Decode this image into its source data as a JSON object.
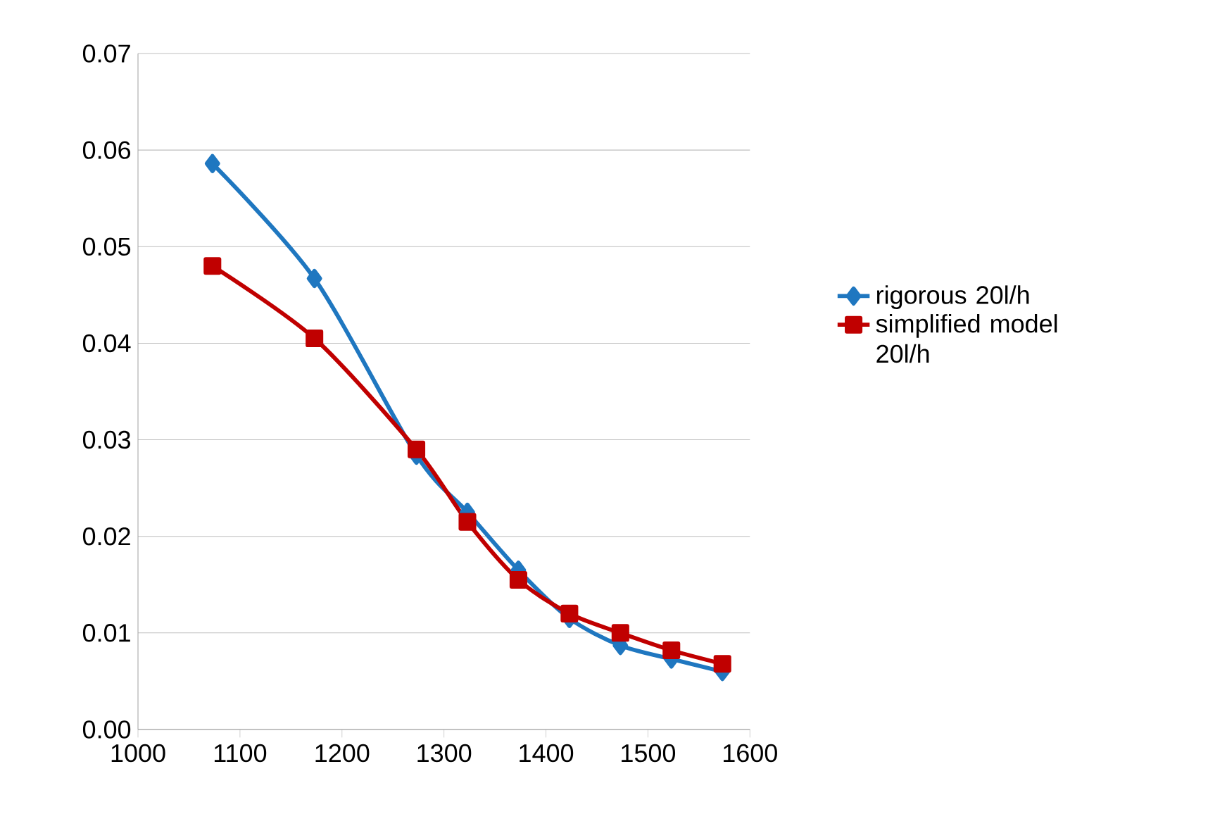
{
  "chart_data": {
    "type": "line",
    "x": [
      1073,
      1173,
      1273,
      1323,
      1373,
      1423,
      1473,
      1523,
      1573
    ],
    "series": [
      {
        "name": "rigorous 20l/h",
        "color": "#1f77c0",
        "marker": "diamond",
        "values": [
          0.0586,
          0.0467,
          0.0284,
          0.0225,
          0.0165,
          0.0115,
          0.0087,
          0.0073,
          0.006
        ]
      },
      {
        "name": "simplified model 20l/h",
        "color": "#c00000",
        "marker": "square",
        "values": [
          0.048,
          0.0405,
          0.029,
          0.0215,
          0.0155,
          0.012,
          0.01,
          0.0082,
          0.0068
        ]
      }
    ],
    "xlim": [
      1000,
      1600
    ],
    "xticks": [
      1000,
      1100,
      1200,
      1300,
      1400,
      1500,
      1600
    ],
    "ylim": [
      0,
      0.07
    ],
    "yticks": [
      {
        "value": 0,
        "label": "0.00"
      },
      {
        "value": 0.01,
        "label": "0.01"
      },
      {
        "value": 0.02,
        "label": "0.02"
      },
      {
        "value": 0.03,
        "label": "0.03"
      },
      {
        "value": 0.04,
        "label": "0.04"
      },
      {
        "value": 0.05,
        "label": "0.05"
      },
      {
        "value": 0.06,
        "label": "0.06"
      },
      {
        "value": 0.07,
        "label": "0.07"
      }
    ],
    "grid": "y",
    "legend": "right",
    "line_style": "solid"
  }
}
